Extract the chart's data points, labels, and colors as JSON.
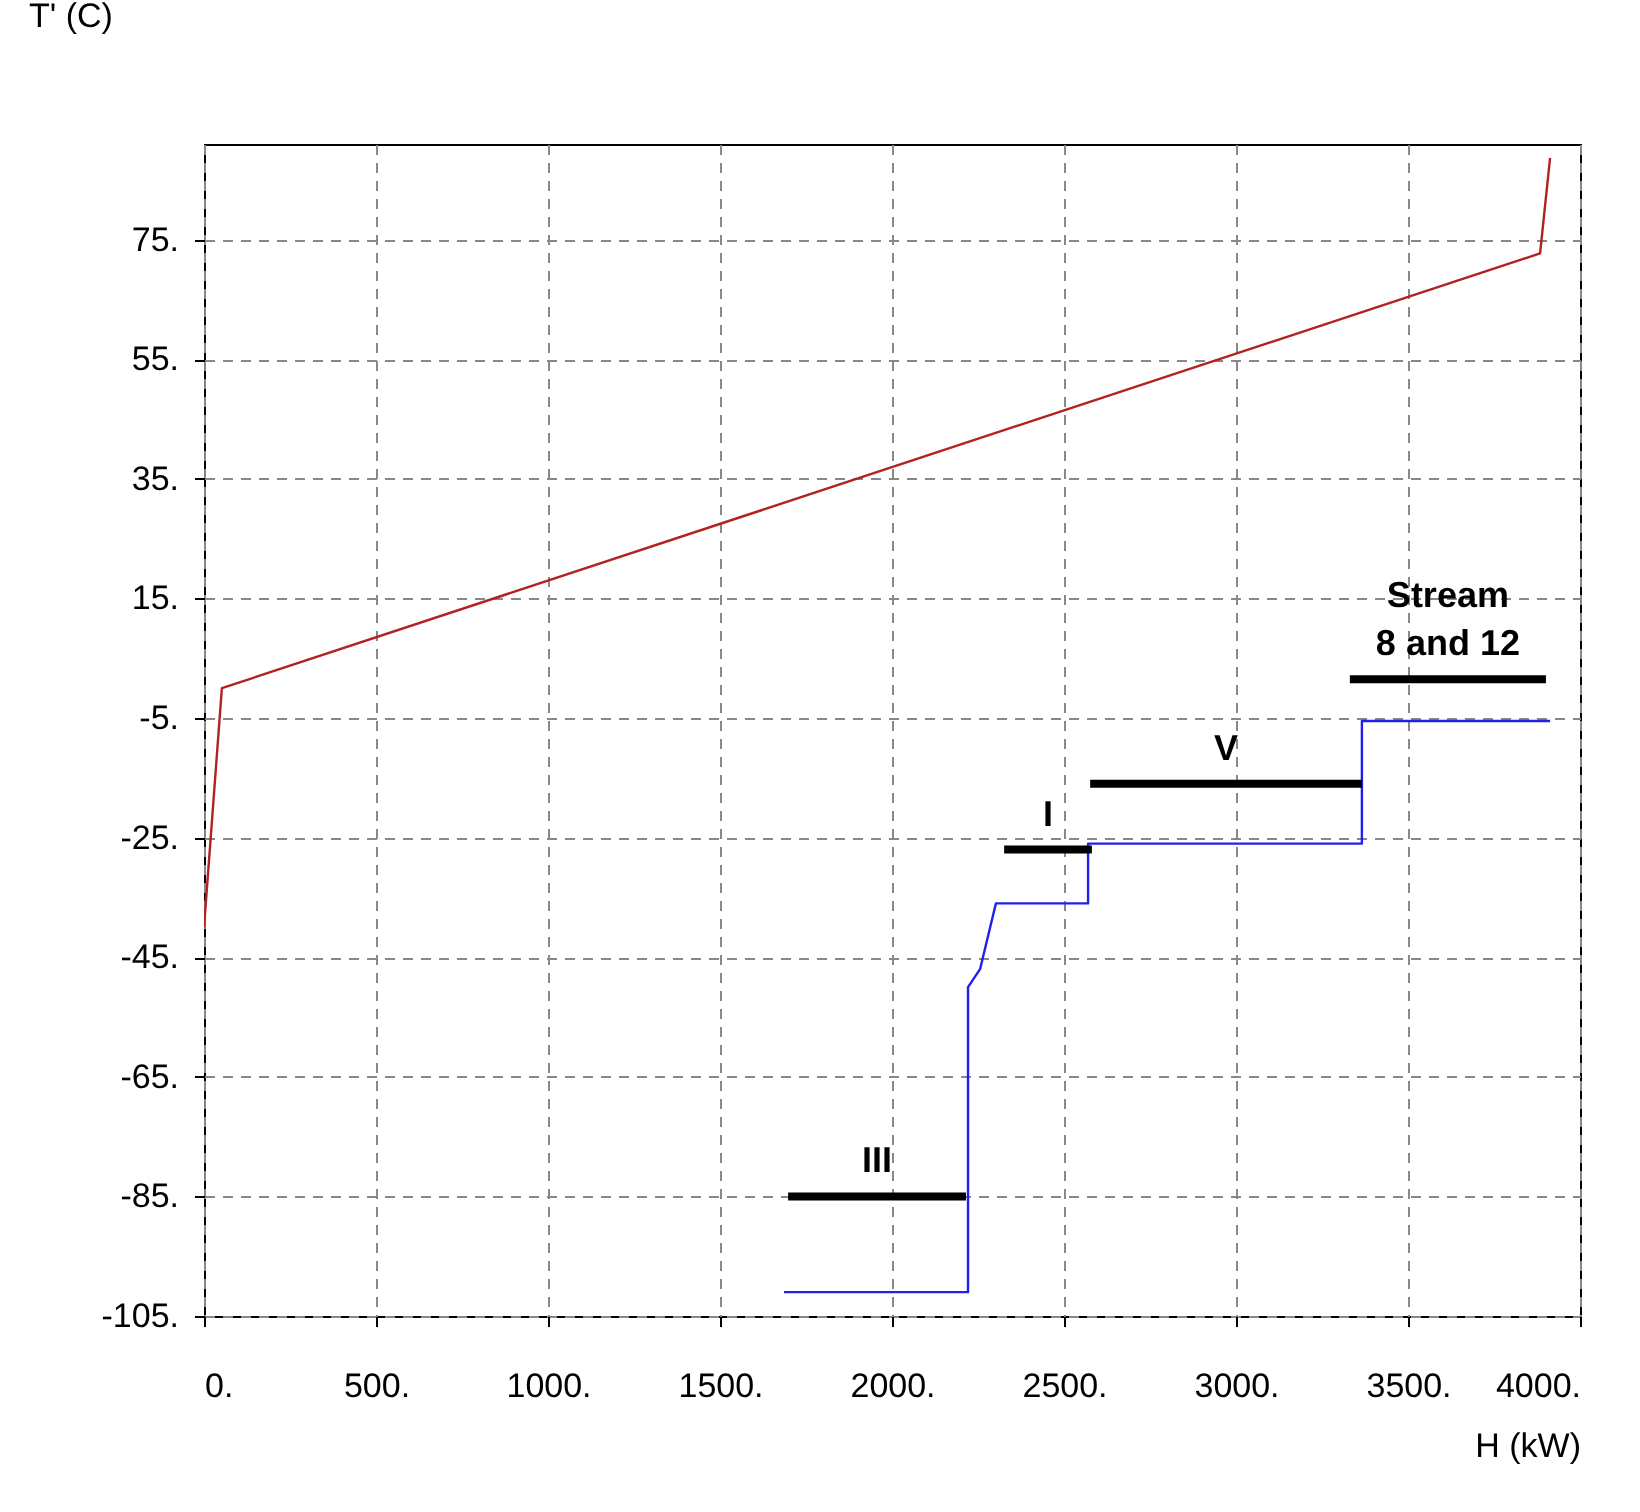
{
  "chart_data": {
    "type": "line",
    "xlabel": "H (kW)",
    "ylabel": "T' (C)",
    "xlim": [
      0,
      4000
    ],
    "ylim": [
      -105,
      91
    ],
    "xticks": [
      {
        "value": 0,
        "label": "0."
      },
      {
        "value": 500,
        "label": "500."
      },
      {
        "value": 1000,
        "label": "1000."
      },
      {
        "value": 1500,
        "label": "1500."
      },
      {
        "value": 2000,
        "label": "2000."
      },
      {
        "value": 2500,
        "label": "2500."
      },
      {
        "value": 3000,
        "label": "3000."
      },
      {
        "value": 3500,
        "label": "3500."
      },
      {
        "value": 4000,
        "label": "4000."
      }
    ],
    "yticks": [
      {
        "value": -105,
        "label": "-105."
      },
      {
        "value": -85,
        "label": "-85."
      },
      {
        "value": -65,
        "label": "-65."
      },
      {
        "value": -45,
        "label": "-45."
      },
      {
        "value": -25,
        "label": "-25."
      },
      {
        "value": -5,
        "label": "-5."
      },
      {
        "value": 15,
        "label": "15."
      },
      {
        "value": 35,
        "label": "35."
      },
      {
        "value": 55,
        "label": "55."
      },
      {
        "value": 75,
        "label": "75."
      }
    ],
    "grid": true,
    "series": [
      {
        "color": "#b22222",
        "x": [
          0,
          52,
          3884,
          3913
        ],
        "values": [
          -40,
          0,
          72.7,
          88.7
        ]
      },
      {
        "color": "#2020ee",
        "x": [
          1686,
          2221,
          2221,
          2256,
          2302,
          2570,
          2570,
          3366,
          3366,
          3913
        ],
        "values": [
          -101,
          -101,
          -50,
          -47,
          -36,
          -36,
          -26,
          -26,
          -5.5,
          -5.5
        ]
      },
      {
        "name": "III",
        "color": "#000000",
        "x": [
          1698,
          2215
        ],
        "values": [
          -85,
          -85
        ]
      },
      {
        "name": "I",
        "color": "#000000",
        "x": [
          2326,
          2581
        ],
        "values": [
          -27,
          -27
        ]
      },
      {
        "name": "V",
        "color": "#000000",
        "x": [
          2576,
          3366
        ],
        "values": [
          -16,
          -16
        ]
      },
      {
        "name": "Stream\n8 and 12",
        "color": "#000000",
        "x": [
          3331,
          3901
        ],
        "values": [
          1.5,
          1.5
        ]
      }
    ]
  }
}
